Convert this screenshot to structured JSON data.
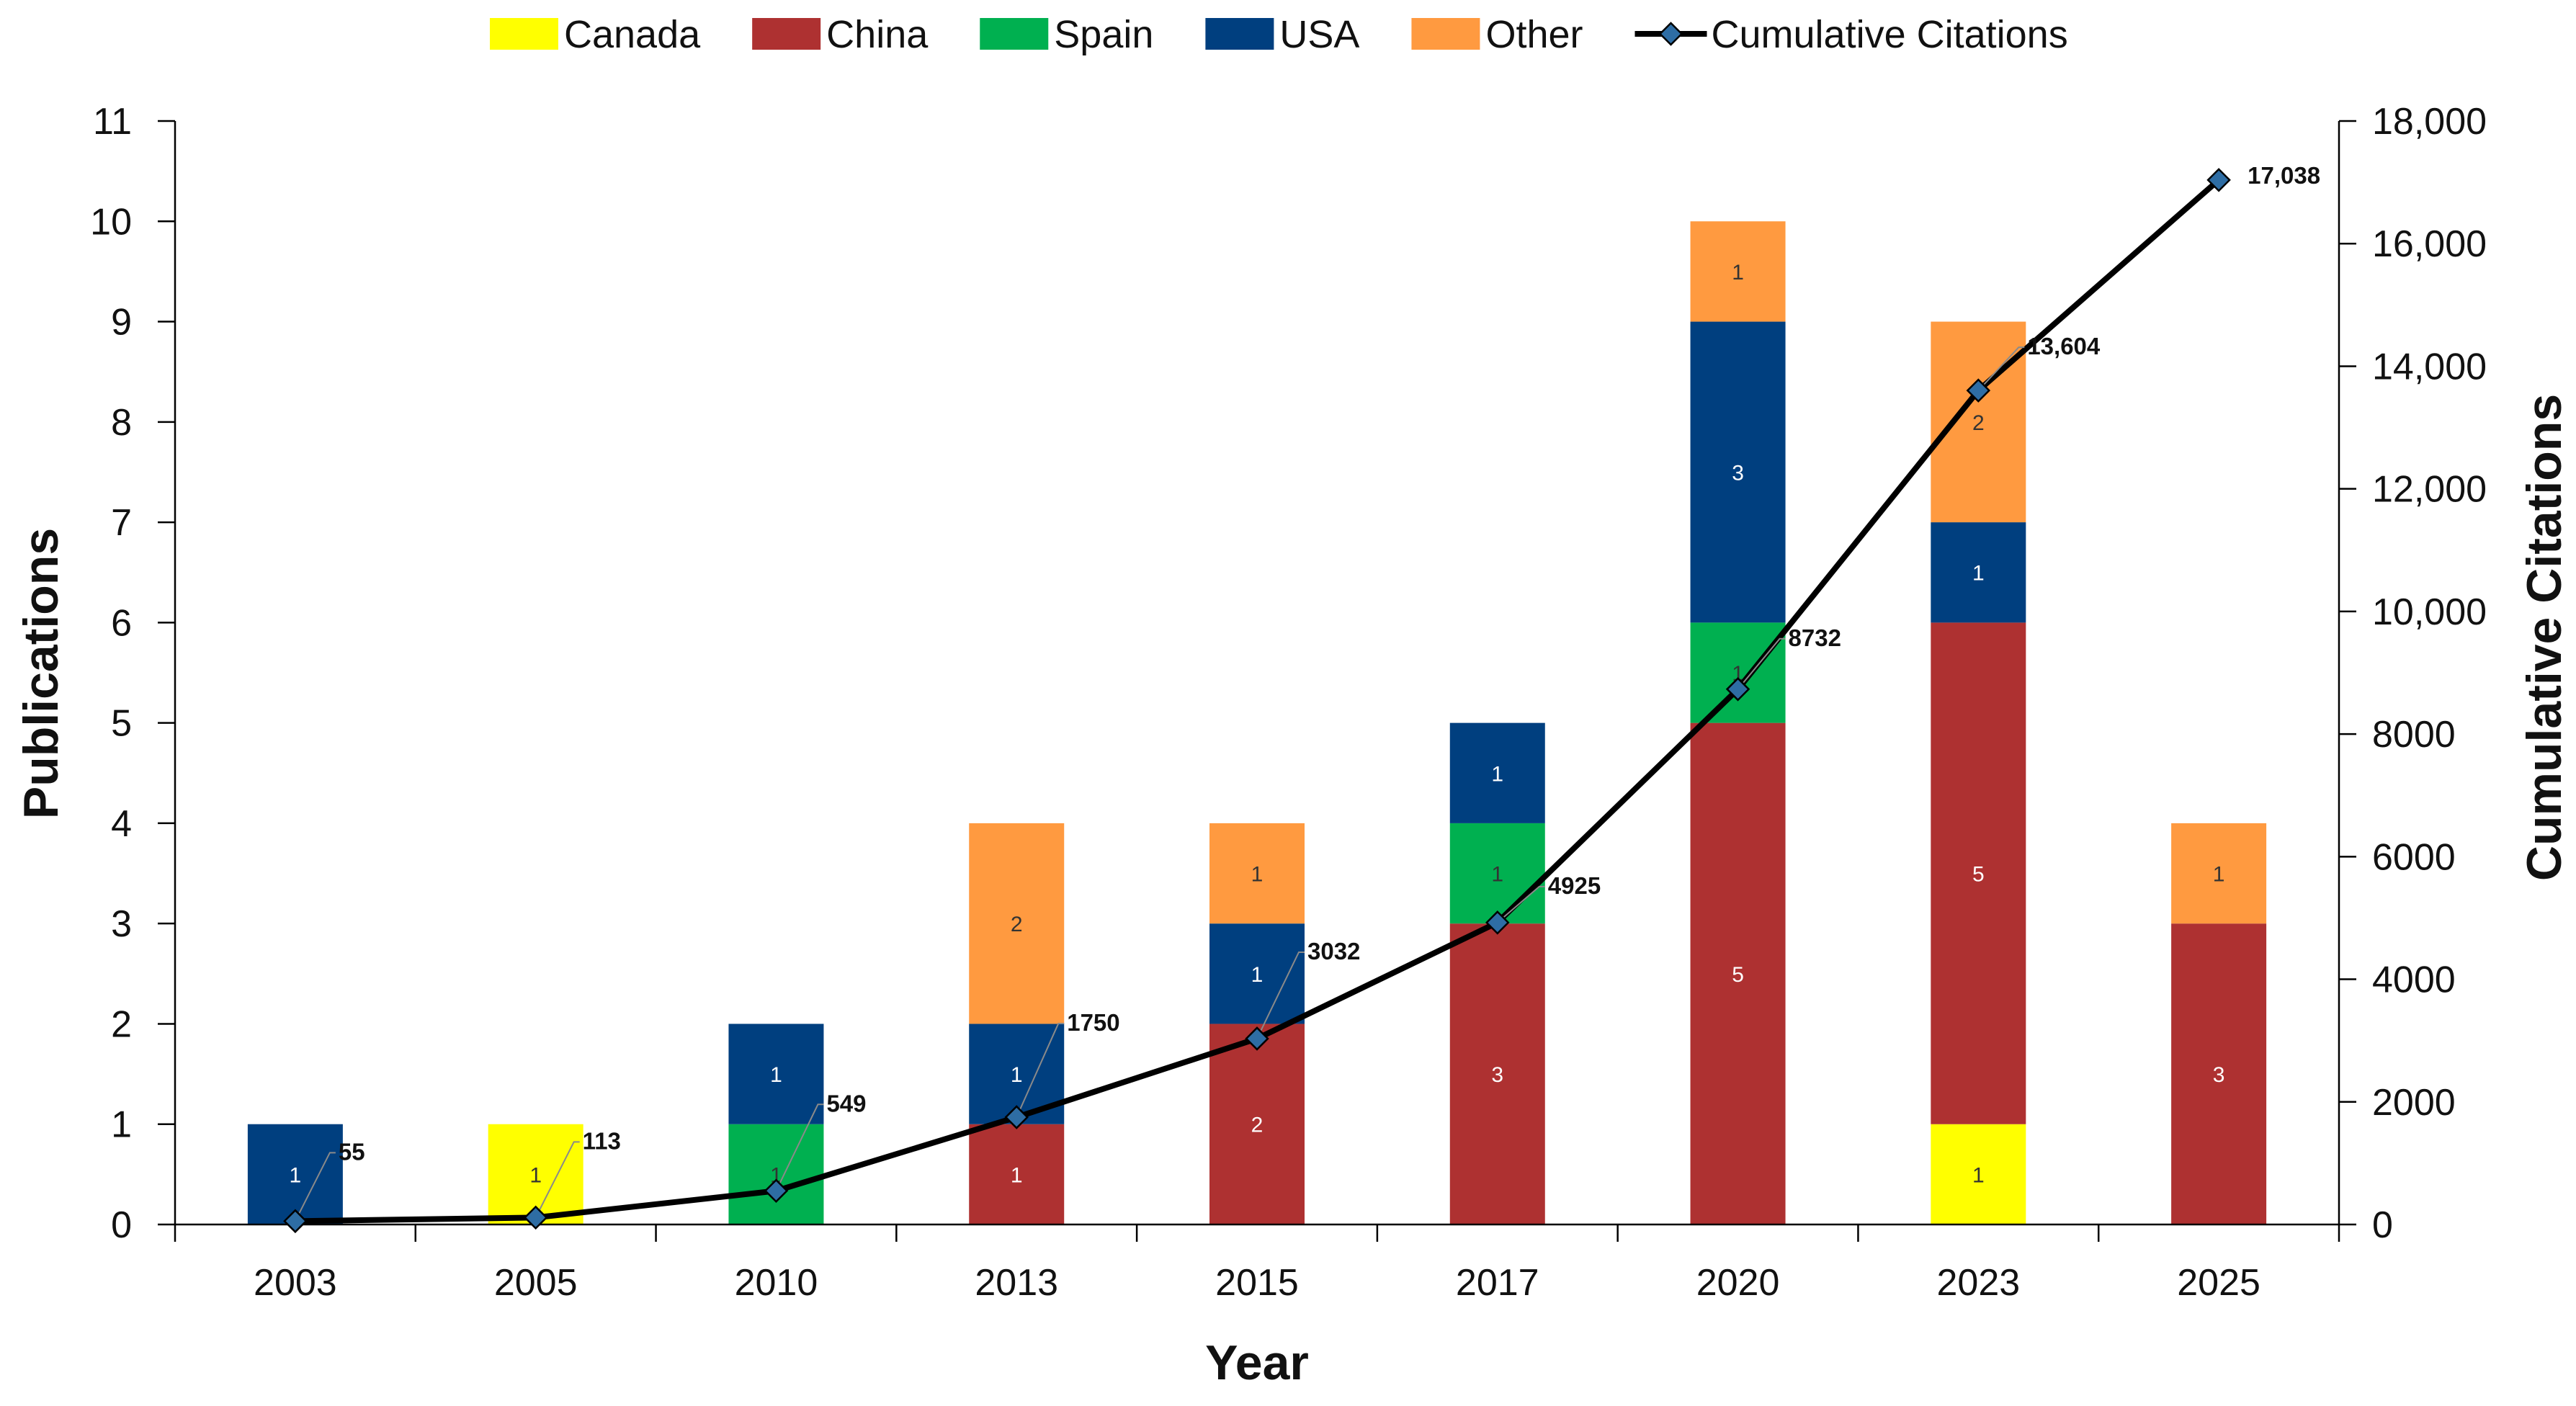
{
  "chart_data": {
    "type": "bar",
    "stacked": true,
    "categories": [
      "2003",
      "2005",
      "2010",
      "2013",
      "2015",
      "2017",
      "2020",
      "2023",
      "2025"
    ],
    "series": [
      {
        "name": "Canada",
        "color": "#FFFF00",
        "label_color": "#333333",
        "values": [
          0,
          1,
          0,
          0,
          0,
          0,
          0,
          1,
          0
        ]
      },
      {
        "name": "China",
        "color": "#AE3131",
        "label_color": "#ffffff",
        "values": [
          0,
          0,
          0,
          1,
          2,
          3,
          5,
          5,
          3
        ]
      },
      {
        "name": "Spain",
        "color": "#00B050",
        "label_color": "#333333",
        "values": [
          0,
          0,
          1,
          0,
          0,
          1,
          1,
          0,
          0
        ]
      },
      {
        "name": "USA",
        "color": "#003F7F",
        "label_color": "#ffffff",
        "values": [
          1,
          0,
          1,
          1,
          1,
          1,
          3,
          1,
          0
        ]
      },
      {
        "name": "Other",
        "color": "#FF9A40",
        "label_color": "#333333",
        "values": [
          0,
          0,
          0,
          2,
          1,
          0,
          1,
          2,
          1
        ]
      }
    ],
    "line_series": {
      "name": "Cumulative Citations",
      "color": "#000000",
      "marker_color": "#2E6DA4",
      "values": [
        55,
        113,
        549,
        1750,
        3032,
        4925,
        8732,
        13604,
        17038
      ],
      "labels": [
        "55",
        "113",
        "549",
        "1750",
        "3032",
        "4925",
        "8732",
        "13,604",
        "17,038"
      ]
    },
    "xlabel": "Year",
    "ylabel": "Publications",
    "y2label": "Cumulative Citations",
    "ylim": [
      0,
      11
    ],
    "y_ticks": [
      "0",
      "1",
      "2",
      "3",
      "4",
      "5",
      "6",
      "7",
      "8",
      "9",
      "10",
      "11"
    ],
    "y2lim": [
      0,
      18000
    ],
    "y2_ticks": [
      "0",
      "2000",
      "4000",
      "6000",
      "8000",
      "10,000",
      "12,000",
      "14,000",
      "16,000",
      "18,000"
    ],
    "grid": false,
    "legend_position": "top"
  }
}
